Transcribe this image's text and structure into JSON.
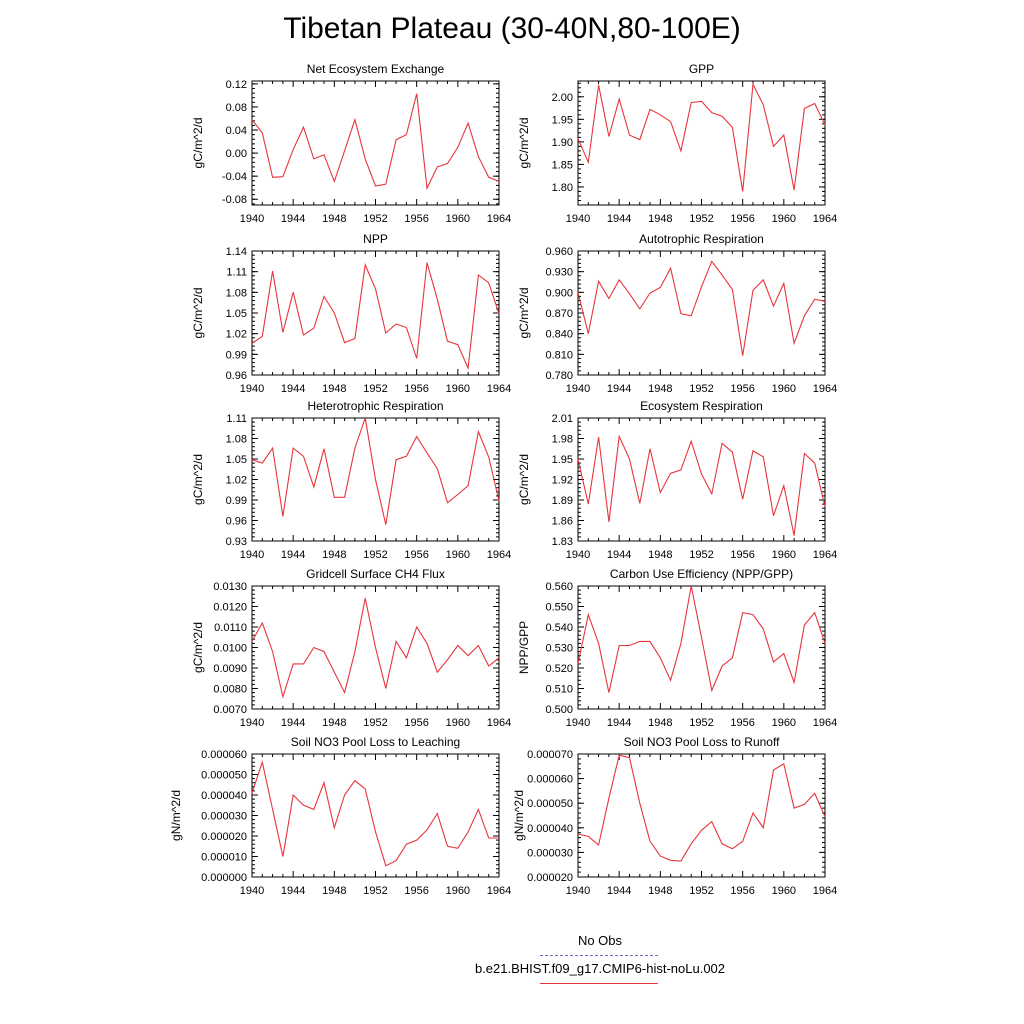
{
  "title": "Tibetan Plateau (30-40N,80-100E)",
  "legend": {
    "obs_label": "No Obs",
    "case_label": "b.e21.BHIST.f09_g17.CMIP6-hist-noLu.002",
    "obs_color": "#6b6bc8",
    "case_color": "#e8343c"
  },
  "chart_data": [
    {
      "type": "line",
      "title": "Net Ecosystem Exchange",
      "ylabel": "gC/m^2/d",
      "xlim": [
        1940,
        1964
      ],
      "ylim": [
        -0.09,
        0.125
      ],
      "x_ticks": [
        "1940",
        "1944",
        "1948",
        "1952",
        "1956",
        "1960",
        "1964"
      ],
      "y_ticks": [
        "-0.08",
        "-0.04",
        "0.00",
        "0.04",
        "0.08",
        "0.12"
      ],
      "x": [
        1940,
        1941,
        1942,
        1943,
        1944,
        1945,
        1946,
        1947,
        1948,
        1949,
        1950,
        1951,
        1952,
        1953,
        1954,
        1955,
        1956,
        1957,
        1958,
        1959,
        1960,
        1961,
        1962,
        1963,
        1964
      ],
      "series": [
        {
          "values": [
            0.058,
            0.035,
            -0.042,
            -0.041,
            0.006,
            0.045,
            -0.01,
            -0.003,
            -0.049,
            0.004,
            0.058,
            -0.01,
            -0.057,
            -0.054,
            0.023,
            0.032,
            0.103,
            -0.061,
            -0.024,
            -0.018,
            0.01,
            0.052,
            -0.006,
            -0.042,
            -0.049
          ]
        }
      ]
    },
    {
      "type": "line",
      "title": "GPP",
      "ylabel": "gC/m^2/d",
      "xlim": [
        1940,
        1964
      ],
      "ylim": [
        1.76,
        2.035
      ],
      "x_ticks": [
        "1940",
        "1944",
        "1948",
        "1952",
        "1956",
        "1960",
        "1964"
      ],
      "y_ticks": [
        "1.80",
        "1.85",
        "1.90",
        "1.95",
        "2.00"
      ],
      "x": [
        1940,
        1941,
        1942,
        1943,
        1944,
        1945,
        1946,
        1947,
        1948,
        1949,
        1950,
        1951,
        1952,
        1953,
        1954,
        1955,
        1956,
        1957,
        1958,
        1959,
        1960,
        1961,
        1962,
        1963,
        1964
      ],
      "series": [
        {
          "values": [
            1.907,
            1.855,
            2.026,
            1.912,
            1.995,
            1.915,
            1.905,
            1.972,
            1.96,
            1.945,
            1.88,
            1.987,
            1.99,
            1.965,
            1.957,
            1.932,
            1.79,
            2.028,
            1.982,
            1.89,
            1.915,
            1.793,
            1.974,
            1.985,
            1.938
          ]
        }
      ]
    },
    {
      "type": "line",
      "title": "NPP",
      "ylabel": "gC/m^2/d",
      "xlim": [
        1940,
        1964
      ],
      "ylim": [
        0.96,
        1.14
      ],
      "x_ticks": [
        "1940",
        "1944",
        "1948",
        "1952",
        "1956",
        "1960",
        "1964"
      ],
      "y_ticks": [
        "0.96",
        "0.99",
        "1.02",
        "1.05",
        "1.08",
        "1.11",
        "1.14"
      ],
      "x": [
        1940,
        1941,
        1942,
        1943,
        1944,
        1945,
        1946,
        1947,
        1948,
        1949,
        1950,
        1951,
        1952,
        1953,
        1954,
        1955,
        1956,
        1957,
        1958,
        1959,
        1960,
        1961,
        1962,
        1963,
        1964
      ],
      "series": [
        {
          "values": [
            1.006,
            1.016,
            1.111,
            1.022,
            1.08,
            1.018,
            1.028,
            1.074,
            1.05,
            1.007,
            1.013,
            1.12,
            1.085,
            1.021,
            1.034,
            1.029,
            0.984,
            1.123,
            1.07,
            1.009,
            1.004,
            0.97,
            1.105,
            1.094,
            1.049
          ]
        }
      ]
    },
    {
      "type": "line",
      "title": "Autotrophic Respiration",
      "ylabel": "gC/m^2/d",
      "xlim": [
        1940,
        1964
      ],
      "ylim": [
        0.78,
        0.96
      ],
      "x_ticks": [
        "1940",
        "1944",
        "1948",
        "1952",
        "1956",
        "1960",
        "1964"
      ],
      "y_ticks": [
        "0.780",
        "0.810",
        "0.840",
        "0.870",
        "0.900",
        "0.930",
        "0.960"
      ],
      "x": [
        1940,
        1941,
        1942,
        1943,
        1944,
        1945,
        1946,
        1947,
        1948,
        1949,
        1950,
        1951,
        1952,
        1953,
        1954,
        1955,
        1956,
        1957,
        1958,
        1959,
        1960,
        1961,
        1962,
        1963,
        1964
      ],
      "series": [
        {
          "values": [
            0.9,
            0.84,
            0.916,
            0.891,
            0.918,
            0.898,
            0.876,
            0.899,
            0.907,
            0.935,
            0.869,
            0.866,
            0.908,
            0.945,
            0.925,
            0.904,
            0.808,
            0.903,
            0.918,
            0.88,
            0.913,
            0.826,
            0.866,
            0.89,
            0.887
          ]
        }
      ]
    },
    {
      "type": "line",
      "title": "Heterotrophic Respiration",
      "ylabel": "gC/m^2/d",
      "xlim": [
        1940,
        1964
      ],
      "ylim": [
        0.93,
        1.11
      ],
      "x_ticks": [
        "1940",
        "1944",
        "1948",
        "1952",
        "1956",
        "1960",
        "1964"
      ],
      "y_ticks": [
        "0.93",
        "0.96",
        "0.99",
        "1.02",
        "1.05",
        "1.08",
        "1.11"
      ],
      "x": [
        1940,
        1941,
        1942,
        1943,
        1944,
        1945,
        1946,
        1947,
        1948,
        1949,
        1950,
        1951,
        1952,
        1953,
        1954,
        1955,
        1956,
        1957,
        1958,
        1959,
        1960,
        1961,
        1962,
        1963,
        1964
      ],
      "series": [
        {
          "values": [
            1.049,
            1.044,
            1.066,
            0.966,
            1.066,
            1.054,
            1.009,
            1.065,
            0.994,
            0.994,
            1.066,
            1.11,
            1.02,
            0.954,
            1.049,
            1.054,
            1.083,
            1.059,
            1.036,
            0.986,
            0.998,
            1.011,
            1.09,
            1.053,
            0.989
          ]
        }
      ]
    },
    {
      "type": "line",
      "title": "Ecosystem Respiration",
      "ylabel": "gC/m^2/d",
      "xlim": [
        1940,
        1964
      ],
      "ylim": [
        1.83,
        2.01
      ],
      "x_ticks": [
        "1940",
        "1944",
        "1948",
        "1952",
        "1956",
        "1960",
        "1964"
      ],
      "y_ticks": [
        "1.83",
        "1.86",
        "1.89",
        "1.92",
        "1.95",
        "1.98",
        "2.01"
      ],
      "x": [
        1940,
        1941,
        1942,
        1943,
        1944,
        1945,
        1946,
        1947,
        1948,
        1949,
        1950,
        1951,
        1952,
        1953,
        1954,
        1955,
        1956,
        1957,
        1958,
        1959,
        1960,
        1961,
        1962,
        1963,
        1964
      ],
      "series": [
        {
          "values": [
            1.95,
            1.884,
            1.982,
            1.858,
            1.983,
            1.95,
            1.885,
            1.965,
            1.901,
            1.929,
            1.934,
            1.976,
            1.928,
            1.899,
            1.973,
            1.96,
            1.891,
            1.962,
            1.953,
            1.867,
            1.911,
            1.838,
            1.958,
            1.944,
            1.88
          ]
        }
      ]
    },
    {
      "type": "line",
      "title": "Gridcell Surface CH4 Flux",
      "ylabel": "gC/m^2/d",
      "xlim": [
        1940,
        1964
      ],
      "ylim": [
        0.007,
        0.013
      ],
      "x_ticks": [
        "1940",
        "1944",
        "1948",
        "1952",
        "1956",
        "1960",
        "1964"
      ],
      "y_ticks": [
        "0.0070",
        "0.0080",
        "0.0090",
        "0.0100",
        "0.0110",
        "0.0120",
        "0.0130"
      ],
      "x": [
        1940,
        1941,
        1942,
        1943,
        1944,
        1945,
        1946,
        1947,
        1948,
        1949,
        1950,
        1951,
        1952,
        1953,
        1954,
        1955,
        1956,
        1957,
        1958,
        1959,
        1960,
        1961,
        1962,
        1963,
        1964
      ],
      "series": [
        {
          "values": [
            0.0103,
            0.0112,
            0.0098,
            0.0076,
            0.0092,
            0.0092,
            0.01,
            0.0098,
            0.0088,
            0.0078,
            0.0098,
            0.0124,
            0.01,
            0.008,
            0.0103,
            0.0095,
            0.011,
            0.0102,
            0.0088,
            0.0094,
            0.0101,
            0.0096,
            0.0101,
            0.0091,
            0.0095
          ]
        }
      ]
    },
    {
      "type": "line",
      "title": "Carbon Use Efficiency (NPP/GPP)",
      "ylabel": "NPP/GPP",
      "xlim": [
        1940,
        1964
      ],
      "ylim": [
        0.5,
        0.56
      ],
      "x_ticks": [
        "1940",
        "1944",
        "1948",
        "1952",
        "1956",
        "1960",
        "1964"
      ],
      "y_ticks": [
        "0.500",
        "0.510",
        "0.520",
        "0.530",
        "0.540",
        "0.550",
        "0.560"
      ],
      "x": [
        1940,
        1941,
        1942,
        1943,
        1944,
        1945,
        1946,
        1947,
        1948,
        1949,
        1950,
        1951,
        1952,
        1953,
        1954,
        1955,
        1956,
        1957,
        1958,
        1959,
        1960,
        1961,
        1962,
        1963,
        1964
      ],
      "series": [
        {
          "values": [
            0.522,
            0.546,
            0.532,
            0.508,
            0.531,
            0.531,
            0.533,
            0.533,
            0.525,
            0.514,
            0.532,
            0.56,
            0.535,
            0.509,
            0.521,
            0.525,
            0.547,
            0.546,
            0.539,
            0.523,
            0.527,
            0.513,
            0.541,
            0.547,
            0.532
          ]
        }
      ]
    },
    {
      "type": "line",
      "title": "Soil NO3 Pool Loss to Leaching",
      "ylabel": "gN/m^2/d",
      "xlim": [
        1940,
        1964
      ],
      "ylim": [
        0.0,
        6e-05
      ],
      "x_ticks": [
        "1940",
        "1944",
        "1948",
        "1952",
        "1956",
        "1960",
        "1964"
      ],
      "y_ticks": [
        "0.000000",
        "0.000010",
        "0.000020",
        "0.000030",
        "0.000040",
        "0.000050",
        "0.000060"
      ],
      "x": [
        1940,
        1941,
        1942,
        1943,
        1944,
        1945,
        1946,
        1947,
        1948,
        1949,
        1950,
        1951,
        1952,
        1953,
        1954,
        1955,
        1956,
        1957,
        1958,
        1959,
        1960,
        1961,
        1962,
        1963,
        1964
      ],
      "series": [
        {
          "values": [
            4.1e-05,
            5.6e-05,
            3.3e-05,
            1e-05,
            4e-05,
            3.5e-05,
            3.3e-05,
            4.6e-05,
            2.4e-05,
            4e-05,
            4.7e-05,
            4.3e-05,
            2.2e-05,
            5.5e-06,
            8e-06,
            1.6e-05,
            1.8e-05,
            2.3e-05,
            3.1e-05,
            1.5e-05,
            1.4e-05,
            2.2e-05,
            3.3e-05,
            1.9e-05,
            1.9e-05
          ]
        }
      ]
    },
    {
      "type": "line",
      "title": "Soil NO3 Pool Loss to Runoff",
      "ylabel": "gN/m^2/d",
      "xlim": [
        1940,
        1964
      ],
      "ylim": [
        2e-05,
        7e-05
      ],
      "x_ticks": [
        "1940",
        "1944",
        "1948",
        "1952",
        "1956",
        "1960",
        "1964"
      ],
      "y_ticks": [
        "0.000020",
        "0.000030",
        "0.000040",
        "0.000050",
        "0.000060",
        "0.000070"
      ],
      "x": [
        1940,
        1941,
        1942,
        1943,
        1944,
        1945,
        1946,
        1947,
        1948,
        1949,
        1950,
        1951,
        1952,
        1953,
        1954,
        1955,
        1956,
        1957,
        1958,
        1959,
        1960,
        1961,
        1962,
        1963,
        1964
      ],
      "series": [
        {
          "values": [
            3.75e-05,
            3.65e-05,
            3.3e-05,
            5.2e-05,
            6.95e-05,
            6.85e-05,
            5e-05,
            3.45e-05,
            2.85e-05,
            2.68e-05,
            2.65e-05,
            3.35e-05,
            3.9e-05,
            4.25e-05,
            3.35e-05,
            3.15e-05,
            3.45e-05,
            4.6e-05,
            4e-05,
            6.35e-05,
            6.6e-05,
            4.8e-05,
            4.95e-05,
            5.4e-05,
            4.45e-05
          ]
        }
      ]
    }
  ]
}
